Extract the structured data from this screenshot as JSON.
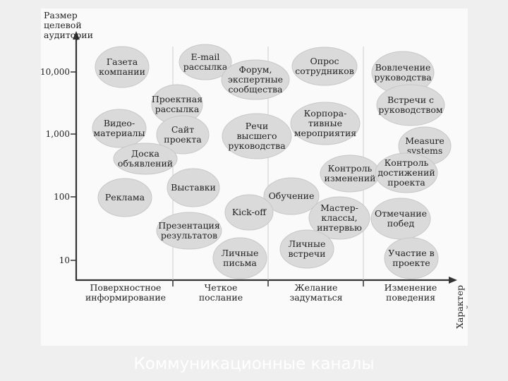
{
  "y_axis_title": [
    "Размер",
    "целевой",
    "аудитории"
  ],
  "x_axis_title": [
    "Характер",
    "воздействия"
  ],
  "y_ticks": [
    "10,000",
    "1,000",
    "100",
    "10"
  ],
  "columns": [
    [
      "Поверхностное",
      "информирование"
    ],
    [
      "Четкое",
      "послание"
    ],
    [
      "Желание",
      "задуматься"
    ],
    [
      "Изменение",
      "поведения"
    ]
  ],
  "channels": [
    {
      "id": "gazeta",
      "lines": [
        "Газета",
        "компании"
      ]
    },
    {
      "id": "email",
      "lines": [
        "E-mail",
        "рассылка"
      ]
    },
    {
      "id": "forum",
      "lines": [
        "Форум,",
        "экспертные",
        "сообщества"
      ]
    },
    {
      "id": "opros",
      "lines": [
        "Опрос",
        "сотрудников"
      ]
    },
    {
      "id": "vovlechenie",
      "lines": [
        "Вовлечение",
        "руководства"
      ]
    },
    {
      "id": "proektnaya",
      "lines": [
        "Проектная",
        "рассылка"
      ]
    },
    {
      "id": "korporativnye",
      "lines": [
        "Корпора-",
        "тивные",
        "мероприятия"
      ]
    },
    {
      "id": "vstrechi-ruk",
      "lines": [
        "Встречи с",
        "руководством"
      ]
    },
    {
      "id": "video",
      "lines": [
        "Видео-",
        "материалы"
      ]
    },
    {
      "id": "sait",
      "lines": [
        "Сайт",
        "проекта"
      ]
    },
    {
      "id": "rechi",
      "lines": [
        "Речи",
        "высшего",
        "руководства"
      ]
    },
    {
      "id": "measure",
      "lines": [
        "Measure",
        "systems"
      ]
    },
    {
      "id": "doska",
      "lines": [
        "Доска",
        "объявлений"
      ]
    },
    {
      "id": "kontrol-izm",
      "lines": [
        "Контроль",
        "изменений"
      ]
    },
    {
      "id": "kontrol-dost",
      "lines": [
        "Контроль",
        "достижений",
        "проекта"
      ]
    },
    {
      "id": "reklama",
      "lines": [
        "Реклама"
      ]
    },
    {
      "id": "vystavki",
      "lines": [
        "Выставки"
      ]
    },
    {
      "id": "obuchenie",
      "lines": [
        "Обучение"
      ]
    },
    {
      "id": "kickoff",
      "lines": [
        "Kick-off"
      ]
    },
    {
      "id": "master",
      "lines": [
        "Мастер-",
        "классы,",
        "интервью"
      ]
    },
    {
      "id": "otmechanie",
      "lines": [
        "Отмечание",
        "побед"
      ]
    },
    {
      "id": "prezentaciya",
      "lines": [
        "Презентация",
        "результатов"
      ]
    },
    {
      "id": "lichnye-vstrechi",
      "lines": [
        "Личные",
        "встречи"
      ]
    },
    {
      "id": "lichnye-pisma",
      "lines": [
        "Личные",
        "письма"
      ]
    },
    {
      "id": "uchastie",
      "lines": [
        "Участие в",
        "проекте"
      ]
    }
  ],
  "footer_title": "Коммуникационные каналы"
}
